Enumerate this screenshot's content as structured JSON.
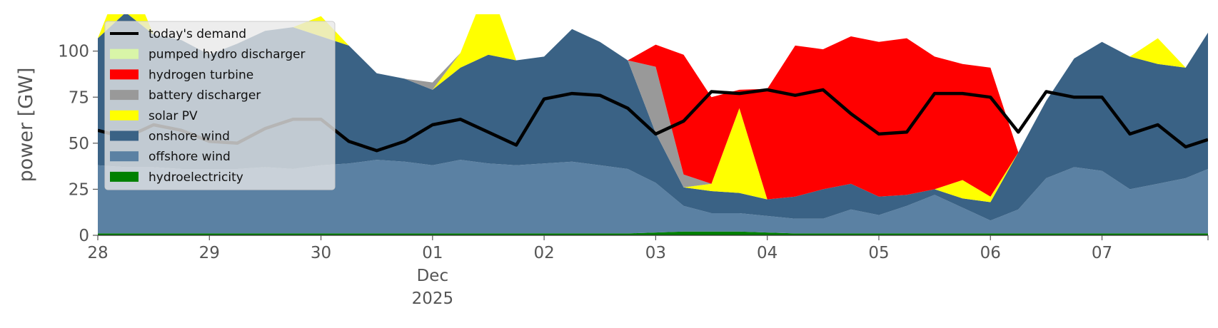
{
  "chart_data": {
    "type": "area",
    "title": "",
    "xlabel": "",
    "ylabel": "power [GW]",
    "ylim": [
      0,
      120
    ],
    "y_ticks": [
      0,
      25,
      50,
      75,
      100
    ],
    "y_tick_labels": [
      "0",
      "25",
      "50",
      "75",
      "100"
    ],
    "x_ticks": [
      0,
      1,
      2,
      3,
      4,
      5,
      6,
      7,
      8,
      9
    ],
    "x_tick_labels": [
      [
        "28"
      ],
      [
        "29"
      ],
      [
        "30"
      ],
      [
        "01",
        "Dec",
        "2025"
      ],
      [
        "02"
      ],
      [
        "03"
      ],
      [
        "04"
      ],
      [
        "05"
      ],
      [
        "06"
      ],
      [
        "07"
      ]
    ],
    "x_range_days": [
      0,
      9.95
    ],
    "x_unit": "days from 28 Nov 2025",
    "grid": false,
    "legend_position": "upper-left",
    "x": [
      0,
      0.25,
      0.5,
      0.75,
      1,
      1.25,
      1.5,
      1.75,
      2,
      2.25,
      2.5,
      2.75,
      3,
      3.25,
      3.5,
      3.75,
      4,
      4.25,
      4.5,
      4.75,
      5,
      5.25,
      5.5,
      5.75,
      6,
      6.25,
      6.5,
      6.75,
      7,
      7.25,
      7.5,
      7.75,
      8,
      8.25,
      8.5,
      8.75,
      9,
      9.25,
      9.5,
      9.75,
      9.95
    ],
    "series": [
      {
        "name": "hydroelectricity",
        "color": "#008000",
        "values": [
          1,
          1,
          1,
          1,
          1,
          1,
          1,
          1,
          1,
          1,
          1,
          1,
          1,
          1,
          1,
          1,
          1,
          1,
          1,
          1,
          1.5,
          2,
          2,
          2,
          1.5,
          1,
          1,
          1,
          1,
          1,
          1,
          1,
          1,
          1,
          1,
          1,
          1,
          1,
          1,
          1,
          1
        ]
      },
      {
        "name": "offshore wind",
        "color": "#5b81a3",
        "values": [
          37,
          36,
          36,
          35,
          35,
          35,
          36,
          35,
          37,
          38,
          40,
          39,
          37,
          40,
          38,
          37,
          38,
          39,
          37,
          35,
          27,
          14,
          10,
          10,
          9,
          8,
          8,
          13,
          10,
          15,
          21,
          14,
          7,
          13,
          30,
          36,
          34,
          24,
          27,
          30,
          35
        ]
      },
      {
        "name": "onshore wind",
        "color": "#3a6285",
        "values": [
          69,
          84,
          72,
          70,
          62,
          68,
          74,
          77,
          70,
          64,
          47,
          45,
          41,
          50,
          59,
          57,
          58,
          72,
          67,
          59,
          27,
          10,
          12,
          11,
          9,
          12,
          16,
          14,
          10,
          6,
          3,
          5,
          10,
          31,
          42,
          59,
          70,
          72,
          65,
          60,
          74
        ]
      },
      {
        "name": "solar PV",
        "color": "#ffff00",
        "values": [
          0,
          24,
          0,
          0,
          0,
          0,
          0,
          0,
          11,
          0,
          0,
          0,
          0,
          8,
          39,
          0,
          0,
          0,
          0,
          0,
          0,
          0,
          4,
          46,
          0,
          0,
          0,
          0,
          0,
          0,
          0,
          10,
          3,
          0,
          0,
          0,
          0,
          0,
          14,
          0,
          0
        ]
      },
      {
        "name": "battery discharger",
        "color": "#999999",
        "values": [
          0,
          0,
          0,
          0,
          0,
          0,
          0,
          0,
          0,
          0,
          0,
          0,
          4,
          0,
          0,
          0,
          0,
          0,
          0,
          0,
          36,
          7,
          0,
          0,
          0,
          0,
          0,
          0,
          0,
          0,
          0,
          0,
          0,
          0,
          0,
          0,
          0,
          0,
          0,
          0,
          0
        ]
      },
      {
        "name": "hydrogen turbine",
        "color": "#ff0000",
        "values": [
          0,
          0,
          0,
          0,
          0,
          0,
          0,
          0,
          0,
          0,
          0,
          0,
          0,
          0,
          0,
          0,
          0,
          0,
          0,
          0,
          12,
          65,
          47,
          10,
          60,
          82,
          76,
          80,
          84,
          85,
          72,
          63,
          70,
          0,
          0,
          0,
          0,
          0,
          0,
          0,
          0
        ]
      },
      {
        "name": "pumped hydro discharger",
        "color": "#d9f5a8",
        "values": [
          0,
          0,
          0,
          0,
          0,
          0,
          0,
          0,
          0,
          0,
          0,
          0,
          0,
          0,
          0,
          0,
          0,
          0,
          0,
          0,
          0,
          0,
          0,
          0,
          0,
          0,
          0,
          0,
          0,
          0,
          0,
          0,
          0,
          0,
          0,
          0,
          0,
          0,
          0,
          0,
          0
        ]
      }
    ],
    "demand": {
      "name": "today's demand",
      "color": "#000000",
      "values": [
        57,
        53,
        60,
        57,
        51,
        50,
        58,
        63,
        63,
        51,
        46,
        51,
        60,
        63,
        56,
        49,
        74,
        77,
        76,
        69,
        55,
        62,
        78,
        77,
        79,
        76,
        79,
        66,
        55,
        56,
        77,
        77,
        75,
        56,
        78,
        75,
        75,
        55,
        60,
        48,
        52
      ]
    }
  }
}
